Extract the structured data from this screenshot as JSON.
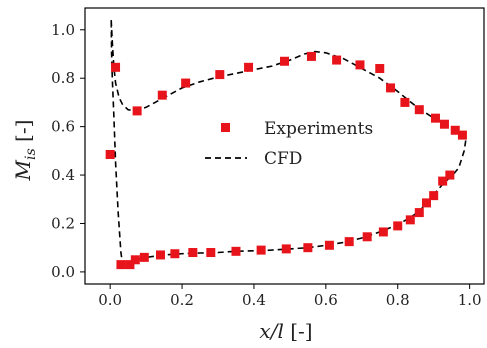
{
  "chart_data": {
    "type": "scatter",
    "xlabel": "x/l [-]",
    "ylabel": "M_is [-]",
    "xlim": [
      -0.07,
      1.04
    ],
    "ylim": [
      -0.05,
      1.09
    ],
    "x_ticks": [
      "0.0",
      "0.2",
      "0.4",
      "0.6",
      "0.8",
      "1.0"
    ],
    "y_ticks": [
      "0.0",
      "0.2",
      "0.4",
      "0.6",
      "0.8",
      "1.0"
    ],
    "grid": false,
    "legend_placement": "center",
    "colors": {
      "experiments": "#e8141b",
      "cfd": "#000000"
    },
    "series": [
      {
        "name": "Experiments",
        "style": "square-markers",
        "points": [
          [
            0.0,
            0.485
          ],
          [
            0.015,
            0.845
          ],
          [
            0.075,
            0.665
          ],
          [
            0.145,
            0.73
          ],
          [
            0.21,
            0.78
          ],
          [
            0.305,
            0.815
          ],
          [
            0.385,
            0.845
          ],
          [
            0.485,
            0.87
          ],
          [
            0.56,
            0.89
          ],
          [
            0.63,
            0.875
          ],
          [
            0.695,
            0.855
          ],
          [
            0.75,
            0.84
          ],
          [
            0.78,
            0.76
          ],
          [
            0.82,
            0.7
          ],
          [
            0.86,
            0.67
          ],
          [
            0.905,
            0.635
          ],
          [
            0.93,
            0.61
          ],
          [
            0.96,
            0.585
          ],
          [
            0.98,
            0.565
          ],
          [
            0.03,
            0.03
          ],
          [
            0.055,
            0.03
          ],
          [
            0.07,
            0.05
          ],
          [
            0.095,
            0.06
          ],
          [
            0.14,
            0.07
          ],
          [
            0.18,
            0.075
          ],
          [
            0.23,
            0.08
          ],
          [
            0.28,
            0.08
          ],
          [
            0.35,
            0.085
          ],
          [
            0.42,
            0.09
          ],
          [
            0.49,
            0.095
          ],
          [
            0.55,
            0.1
          ],
          [
            0.61,
            0.11
          ],
          [
            0.665,
            0.125
          ],
          [
            0.715,
            0.145
          ],
          [
            0.76,
            0.165
          ],
          [
            0.8,
            0.19
          ],
          [
            0.835,
            0.215
          ],
          [
            0.86,
            0.245
          ],
          [
            0.88,
            0.285
          ],
          [
            0.9,
            0.315
          ],
          [
            0.925,
            0.375
          ],
          [
            0.945,
            0.4
          ]
        ]
      },
      {
        "name": "CFD",
        "style": "dashed-line",
        "points": [
          [
            0.003,
            1.04
          ],
          [
            0.006,
            0.95
          ],
          [
            0.01,
            0.85
          ],
          [
            0.015,
            0.78
          ],
          [
            0.025,
            0.72
          ],
          [
            0.035,
            0.69
          ],
          [
            0.05,
            0.67
          ],
          [
            0.07,
            0.665
          ],
          [
            0.1,
            0.68
          ],
          [
            0.15,
            0.72
          ],
          [
            0.2,
            0.76
          ],
          [
            0.25,
            0.785
          ],
          [
            0.3,
            0.805
          ],
          [
            0.35,
            0.82
          ],
          [
            0.4,
            0.835
          ],
          [
            0.45,
            0.85
          ],
          [
            0.5,
            0.875
          ],
          [
            0.54,
            0.9
          ],
          [
            0.57,
            0.91
          ],
          [
            0.6,
            0.905
          ],
          [
            0.65,
            0.88
          ],
          [
            0.7,
            0.84
          ],
          [
            0.75,
            0.8
          ],
          [
            0.8,
            0.745
          ],
          [
            0.85,
            0.685
          ],
          [
            0.9,
            0.635
          ],
          [
            0.95,
            0.595
          ],
          [
            0.98,
            0.575
          ],
          [
            0.99,
            0.55
          ],
          [
            0.985,
            0.5
          ],
          [
            0.97,
            0.43
          ],
          [
            0.95,
            0.395
          ],
          [
            0.93,
            0.37
          ],
          [
            0.9,
            0.32
          ],
          [
            0.88,
            0.285
          ],
          [
            0.86,
            0.25
          ],
          [
            0.83,
            0.22
          ],
          [
            0.8,
            0.195
          ],
          [
            0.75,
            0.165
          ],
          [
            0.7,
            0.14
          ],
          [
            0.65,
            0.122
          ],
          [
            0.6,
            0.11
          ],
          [
            0.55,
            0.1
          ],
          [
            0.5,
            0.095
          ],
          [
            0.45,
            0.09
          ],
          [
            0.4,
            0.087
          ],
          [
            0.35,
            0.085
          ],
          [
            0.3,
            0.08
          ],
          [
            0.25,
            0.078
          ],
          [
            0.2,
            0.075
          ],
          [
            0.15,
            0.07
          ],
          [
            0.1,
            0.06
          ],
          [
            0.07,
            0.05
          ],
          [
            0.05,
            0.035
          ],
          [
            0.035,
            0.03
          ],
          [
            0.03,
            0.08
          ],
          [
            0.022,
            0.25
          ],
          [
            0.015,
            0.45
          ],
          [
            0.01,
            0.65
          ],
          [
            0.006,
            0.8
          ],
          [
            0.004,
            0.9
          ],
          [
            0.003,
            1.04
          ]
        ]
      }
    ]
  }
}
